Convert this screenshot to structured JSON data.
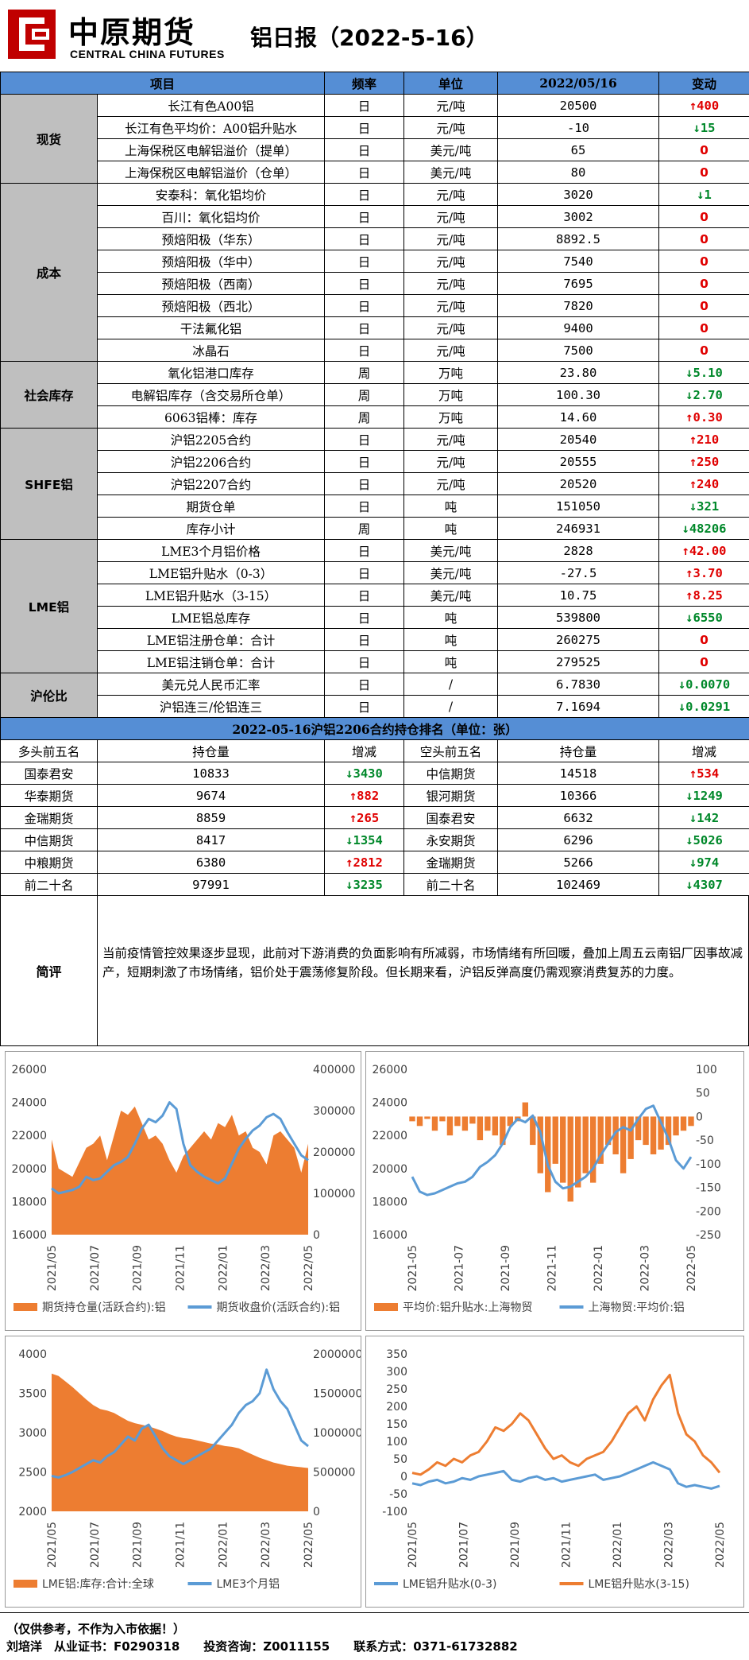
{
  "header": {
    "brand_cn": "中原期货",
    "brand_en": "CENTRAL CHINA FUTURES",
    "title": "铝日报（2022-5-16）"
  },
  "table_header": {
    "item": "项目",
    "freq": "频率",
    "unit": "单位",
    "date": "2022/05/16",
    "change": "变动"
  },
  "groups": [
    {
      "name": "现货",
      "rows": [
        [
          "长江有色A00铝",
          "日",
          "元/吨",
          "20500",
          "↑400",
          "up"
        ],
        [
          "长江有色平均价：A00铝升贴水",
          "日",
          "元/吨",
          "-10",
          "↓15",
          "down"
        ],
        [
          "上海保税区电解铝溢价（提单）",
          "日",
          "美元/吨",
          "65",
          "0",
          "zero"
        ],
        [
          "上海保税区电解铝溢价（仓单）",
          "日",
          "美元/吨",
          "80",
          "0",
          "zero"
        ]
      ]
    },
    {
      "name": "成本",
      "rows": [
        [
          "安泰科：氧化铝均价",
          "日",
          "元/吨",
          "3020",
          "↓1",
          "down"
        ],
        [
          "百川：氧化铝均价",
          "日",
          "元/吨",
          "3002",
          "0",
          "zero"
        ],
        [
          "预焙阳极（华东）",
          "日",
          "元/吨",
          "8892.5",
          "0",
          "zero"
        ],
        [
          "预焙阳极（华中）",
          "日",
          "元/吨",
          "7540",
          "0",
          "zero"
        ],
        [
          "预焙阳极（西南）",
          "日",
          "元/吨",
          "7695",
          "0",
          "zero"
        ],
        [
          "预焙阳极（西北）",
          "日",
          "元/吨",
          "7820",
          "0",
          "zero"
        ],
        [
          "干法氟化铝",
          "日",
          "元/吨",
          "9400",
          "0",
          "zero"
        ],
        [
          "冰晶石",
          "日",
          "元/吨",
          "7500",
          "0",
          "zero"
        ]
      ]
    },
    {
      "name": "社会库存",
      "rows": [
        [
          "氧化铝港口库存",
          "周",
          "万吨",
          "23.80",
          "↓5.10",
          "down"
        ],
        [
          "电解铝库存（含交易所仓单）",
          "周",
          "万吨",
          "100.30",
          "↓2.70",
          "down"
        ],
        [
          "6063铝棒：库存",
          "周",
          "万吨",
          "14.60",
          "↑0.30",
          "up"
        ]
      ]
    },
    {
      "name": "SHFE铝",
      "rows": [
        [
          "沪铝2205合约",
          "日",
          "元/吨",
          "20540",
          "↑210",
          "up"
        ],
        [
          "沪铝2206合约",
          "日",
          "元/吨",
          "20555",
          "↑250",
          "up"
        ],
        [
          "沪铝2207合约",
          "日",
          "元/吨",
          "20520",
          "↑240",
          "up"
        ],
        [
          "期货仓单",
          "日",
          "吨",
          "151050",
          "↓321",
          "down"
        ],
        [
          "库存小计",
          "周",
          "吨",
          "246931",
          "↓48206",
          "down"
        ]
      ]
    },
    {
      "name": "LME铝",
      "rows": [
        [
          "LME3个月铝价格",
          "日",
          "美元/吨",
          "2828",
          "↑42.00",
          "up"
        ],
        [
          "LME铝升贴水（0-3）",
          "日",
          "美元/吨",
          "-27.5",
          "↑3.70",
          "up"
        ],
        [
          "LME铝升贴水（3-15）",
          "日",
          "美元/吨",
          "10.75",
          "↑8.25",
          "up"
        ],
        [
          "LME铝总库存",
          "日",
          "吨",
          "539800",
          "↓6550",
          "down"
        ],
        [
          "LME铝注册仓单：合计",
          "日",
          "吨",
          "260275",
          "0",
          "zero"
        ],
        [
          "LME铝注销仓单：合计",
          "日",
          "吨",
          "279525",
          "0",
          "zero"
        ]
      ]
    },
    {
      "name": "沪伦比",
      "rows": [
        [
          "美元兑人民币汇率",
          "日",
          "/",
          "6.7830",
          "↓0.0070",
          "down"
        ],
        [
          "沪铝连三/伦铝连三",
          "日",
          "/",
          "7.1694",
          "↓0.0291",
          "down"
        ]
      ]
    }
  ],
  "ranking": {
    "title": "2022-05-16沪铝2206合约持仓排名（单位：张）",
    "headers": [
      "多头前五名",
      "持仓量",
      "增减",
      "空头前五名",
      "持仓量",
      "增减"
    ],
    "rows": [
      [
        "国泰君安",
        "10833",
        "↓3430",
        "down",
        "中信期货",
        "14518",
        "↑534",
        "up"
      ],
      [
        "华泰期货",
        "9674",
        "↑882",
        "up",
        "银河期货",
        "10366",
        "↓1249",
        "down"
      ],
      [
        "金瑞期货",
        "8859",
        "↑265",
        "up",
        "国泰君安",
        "6632",
        "↓142",
        "down"
      ],
      [
        "中信期货",
        "8417",
        "↓1354",
        "down",
        "永安期货",
        "6296",
        "↓5026",
        "down"
      ],
      [
        "中粮期货",
        "6380",
        "↑2812",
        "up",
        "金瑞期货",
        "5266",
        "↓974",
        "down"
      ],
      [
        "前二十名",
        "97991",
        "↓3235",
        "down",
        "前二十名",
        "102469",
        "↓4307",
        "down"
      ]
    ]
  },
  "comment": {
    "label": "简评",
    "text": "当前疫情管控效果逐步显现，此前对下游消费的负面影响有所减弱，市场情绪有所回暖，叠加上周五云南铝厂因事故减产，短期刺激了市场情绪，铝价处于震荡修复阶段。但长期来看，沪铝反弹高度仍需观察消费复苏的力度。"
  },
  "chart_data": [
    {
      "type": "area+line",
      "title": "",
      "x_ticks": [
        "2021/05",
        "2021/07",
        "2021/09",
        "2021/11",
        "2022/01",
        "2022/03",
        "2022/05"
      ],
      "left_axis": {
        "ticks": [
          16000,
          18000,
          20000,
          22000,
          24000,
          26000
        ],
        "range": [
          16000,
          26000
        ]
      },
      "right_axis": {
        "ticks": [
          0,
          100000,
          200000,
          300000,
          400000
        ],
        "range": [
          0,
          400000
        ]
      },
      "series": [
        {
          "name": "期货持仓量(活跃合约):铝",
          "kind": "area",
          "axis": "right",
          "color": "#ed7d31",
          "values": [
            230000,
            160000,
            150000,
            140000,
            175000,
            210000,
            220000,
            240000,
            180000,
            240000,
            300000,
            290000,
            310000,
            270000,
            230000,
            240000,
            220000,
            180000,
            150000,
            190000,
            210000,
            230000,
            250000,
            230000,
            270000,
            260000,
            290000,
            240000,
            250000,
            210000,
            200000,
            170000,
            240000,
            250000,
            230000,
            210000,
            150000,
            220000
          ]
        },
        {
          "name": "期货收盘价(活跃合约):铝",
          "kind": "line",
          "axis": "left",
          "color": "#5b9bd5",
          "values": [
            18800,
            18500,
            18600,
            18700,
            18900,
            19500,
            19300,
            19400,
            19800,
            20200,
            20400,
            20700,
            21500,
            22400,
            23000,
            22800,
            23200,
            24000,
            23600,
            21500,
            20200,
            19800,
            19500,
            19300,
            19100,
            19400,
            20300,
            21200,
            21800,
            22300,
            22600,
            23100,
            23300,
            23000,
            22200,
            21500,
            20800,
            20500
          ]
        }
      ]
    },
    {
      "type": "bar+line",
      "title": "",
      "x_ticks": [
        "2021-05",
        "2021-07",
        "2021-09",
        "2021-11",
        "2022-01",
        "2022-03",
        "2022-05"
      ],
      "left_axis": {
        "ticks": [
          16000,
          18000,
          20000,
          22000,
          24000,
          26000
        ],
        "range": [
          16000,
          26000
        ]
      },
      "right_axis": {
        "ticks": [
          -250,
          -200,
          -150,
          -100,
          -50,
          0,
          50,
          100
        ],
        "range": [
          -250,
          100
        ]
      },
      "series": [
        {
          "name": "平均价:铝升贴水:上海物贸",
          "kind": "bar",
          "axis": "right",
          "color": "#ed7d31",
          "values": [
            -10,
            -20,
            -5,
            -30,
            -10,
            -40,
            -20,
            -30,
            -15,
            -50,
            -30,
            -40,
            -60,
            -20,
            -10,
            30,
            -60,
            -120,
            -160,
            -100,
            -140,
            -180,
            -150,
            -120,
            -140,
            -100,
            -60,
            -80,
            -120,
            -90,
            -50,
            -60,
            -80,
            -70,
            -60,
            -40,
            -30,
            -20
          ]
        },
        {
          "name": "上海物贸:平均价:铝",
          "kind": "line",
          "axis": "left",
          "color": "#5b9bd5",
          "values": [
            19500,
            18600,
            18400,
            18500,
            18700,
            18900,
            19100,
            19200,
            19500,
            20100,
            20400,
            20800,
            21500,
            22500,
            23000,
            22800,
            23200,
            22200,
            20200,
            19200,
            18800,
            18900,
            19200,
            19500,
            20000,
            20800,
            21500,
            22200,
            22500,
            22300,
            23000,
            23600,
            23800,
            22800,
            21800,
            20500,
            20000,
            20700
          ]
        }
      ]
    },
    {
      "type": "area+line",
      "title": "",
      "x_ticks": [
        "2021/05",
        "2021/07",
        "2021/09",
        "2021/11",
        "2022/01",
        "2022/03",
        "2022/05"
      ],
      "left_axis": {
        "ticks": [
          2000,
          2500,
          3000,
          3500,
          4000
        ],
        "range": [
          2000,
          4000
        ]
      },
      "right_axis": {
        "ticks": [
          0,
          500000,
          1000000,
          1500000,
          2000000
        ],
        "range": [
          0,
          2000000
        ]
      },
      "series": [
        {
          "name": "LME铝:库存:合计:全球",
          "kind": "area",
          "axis": "right",
          "color": "#ed7d31",
          "values": [
            1750000,
            1720000,
            1650000,
            1580000,
            1500000,
            1420000,
            1350000,
            1300000,
            1280000,
            1250000,
            1200000,
            1150000,
            1120000,
            1100000,
            1080000,
            1050000,
            1020000,
            980000,
            950000,
            930000,
            920000,
            900000,
            880000,
            860000,
            850000,
            830000,
            820000,
            800000,
            760000,
            720000,
            680000,
            650000,
            620000,
            600000,
            580000,
            570000,
            560000,
            550000
          ]
        },
        {
          "name": "LME3个月铝",
          "kind": "line",
          "axis": "left",
          "color": "#5b9bd5",
          "values": [
            2450,
            2430,
            2460,
            2500,
            2550,
            2600,
            2650,
            2620,
            2700,
            2750,
            2850,
            2950,
            2900,
            3050,
            3100,
            2950,
            2800,
            2700,
            2650,
            2600,
            2650,
            2700,
            2750,
            2800,
            2900,
            3000,
            3100,
            3250,
            3350,
            3400,
            3500,
            3800,
            3550,
            3400,
            3300,
            3100,
            2900,
            2828
          ]
        }
      ]
    },
    {
      "type": "line",
      "title": "",
      "x_ticks": [
        "2021/05",
        "2021/07",
        "2021/09",
        "2021/11",
        "2022/01",
        "2022/03",
        "2022/05"
      ],
      "left_axis": {
        "ticks": [
          -100,
          -50,
          0,
          50,
          100,
          150,
          200,
          250,
          300,
          350
        ],
        "range": [
          -100,
          350
        ]
      },
      "series": [
        {
          "name": "LME铝升贴水(0-3)",
          "kind": "line",
          "color": "#5b9bd5",
          "values": [
            -20,
            -25,
            -15,
            -10,
            -20,
            -15,
            -5,
            -10,
            0,
            5,
            10,
            15,
            -10,
            -15,
            -5,
            0,
            -10,
            -5,
            -15,
            -10,
            -5,
            0,
            5,
            -10,
            -5,
            0,
            10,
            20,
            30,
            40,
            30,
            20,
            -20,
            -30,
            -25,
            -30,
            -35,
            -27.5
          ]
        },
        {
          "name": "LME铝升贴水(3-15)",
          "kind": "line",
          "color": "#ed7d31",
          "values": [
            10,
            5,
            20,
            40,
            30,
            50,
            40,
            60,
            70,
            100,
            140,
            130,
            150,
            180,
            160,
            120,
            80,
            50,
            60,
            40,
            30,
            50,
            60,
            70,
            100,
            140,
            180,
            200,
            160,
            220,
            260,
            290,
            180,
            120,
            100,
            60,
            40,
            10.75
          ]
        }
      ]
    }
  ],
  "footer": {
    "disclaimer": "（仅供参考，不作为入市依据！）",
    "line2": "刘培洋　从业证书：F0290318　　投资咨询：Z0011155　　联系方式：0371-61732882"
  }
}
